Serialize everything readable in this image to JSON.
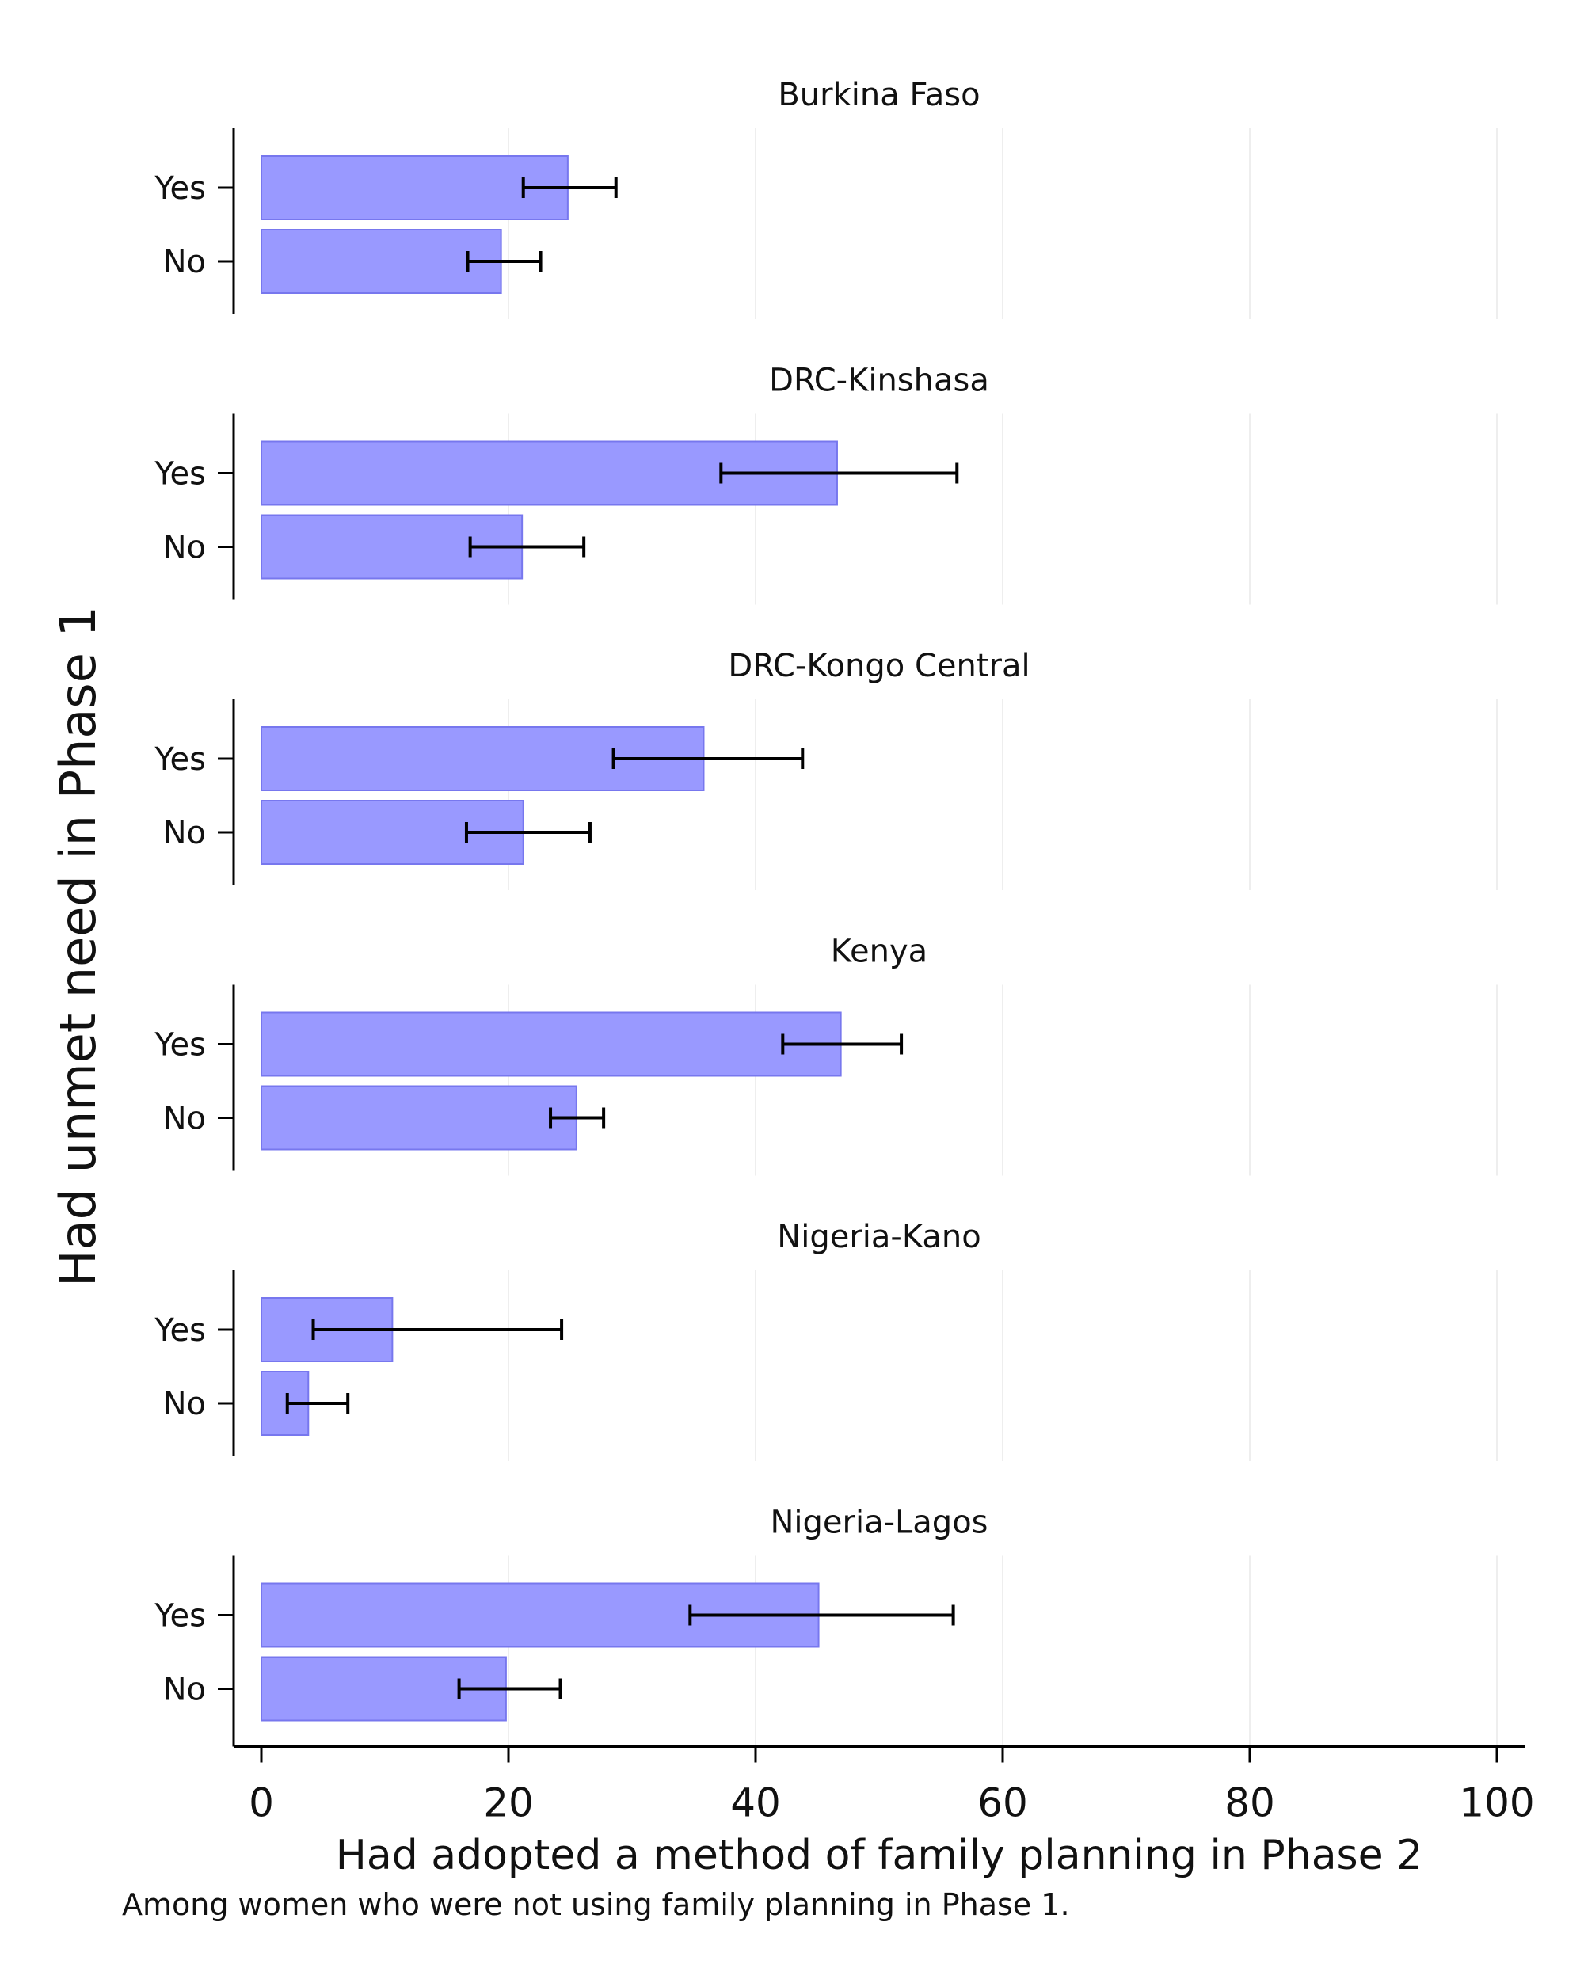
{
  "chart_data": {
    "type": "bar",
    "orientation": "horizontal",
    "xlabel": "Had adopted a method of family planning in Phase 2",
    "ylabel": "Had unmet need in Phase 1",
    "note": "Among women who were not using family planning in Phase 1.",
    "xlim": [
      0,
      100
    ],
    "xticks": [
      0,
      20,
      40,
      60,
      80,
      100
    ],
    "grid": true,
    "categories": [
      "Yes",
      "No"
    ],
    "colors": {
      "bar_fill": "#9999ff",
      "bar_stroke": "#7777ee",
      "error_bar": "#000000",
      "grid": "#eeeeee"
    },
    "panels": [
      {
        "title": "Burkina Faso",
        "values": [
          24.8,
          19.4
        ],
        "ci_low": [
          21.2,
          16.7
        ],
        "ci_high": [
          28.7,
          22.6
        ]
      },
      {
        "title": "DRC-Kinshasa",
        "values": [
          46.6,
          21.1
        ],
        "ci_low": [
          37.2,
          16.9
        ],
        "ci_high": [
          56.3,
          26.1
        ]
      },
      {
        "title": "DRC-Kongo Central",
        "values": [
          35.8,
          21.2
        ],
        "ci_low": [
          28.5,
          16.6
        ],
        "ci_high": [
          43.8,
          26.6
        ]
      },
      {
        "title": "Kenya",
        "values": [
          46.9,
          25.5
        ],
        "ci_low": [
          42.2,
          23.4
        ],
        "ci_high": [
          51.8,
          27.7
        ]
      },
      {
        "title": "Nigeria-Kano",
        "values": [
          10.6,
          3.8
        ],
        "ci_low": [
          4.2,
          2.1
        ],
        "ci_high": [
          24.3,
          7.0
        ]
      },
      {
        "title": "Nigeria-Lagos",
        "values": [
          45.1,
          19.8
        ],
        "ci_low": [
          34.7,
          16.0
        ],
        "ci_high": [
          56.0,
          24.2
        ]
      }
    ]
  }
}
